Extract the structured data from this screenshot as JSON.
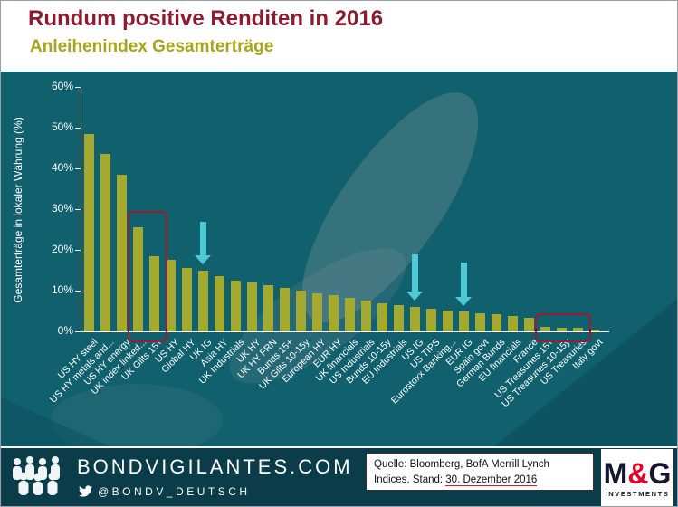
{
  "header": {
    "title": "Rundum positive Renditen in 2016",
    "subtitle": "Anleihenindex Gesamterträge"
  },
  "chart_data": {
    "type": "bar",
    "title": "Anleihenindex Gesamterträge",
    "xlabel": "",
    "ylabel": "Gesamterträge in lokaler Währung (%)",
    "ylim": [
      0,
      60
    ],
    "yticks": [
      "0%",
      "10%",
      "20%",
      "30%",
      "40%",
      "50%",
      "60%"
    ],
    "grid": false,
    "legend": "none",
    "bar_color": "#a4a930",
    "background_color": "#11606e",
    "categories": [
      "US HY steel",
      "US HY metals and...",
      "US HY energy",
      "UK index linked...",
      "UK Gilts 15+",
      "US HY",
      "Global HY",
      "UK IG",
      "Asia HY",
      "UK Industrials",
      "UK HY",
      "UK HY FRN",
      "Bunds 15+",
      "UK Gilts 10-15y",
      "European HY",
      "EUR HY",
      "UK financials",
      "US Industrials",
      "Bunds 10-15y",
      "EU Industrials",
      "US IG",
      "US TIPS",
      "Eurostoxx Banking...",
      "EUR IG",
      "Spain govt",
      "German Bunds",
      "EU financials",
      "France",
      "US Treasuries 15+",
      "US Treasuries 10-15y",
      "US Treasuries",
      "Italy govt"
    ],
    "values": [
      48.5,
      43.5,
      38.5,
      25.5,
      18.5,
      17.5,
      15.5,
      15,
      13.5,
      12.5,
      12,
      11.3,
      10.6,
      10,
      9.4,
      8.8,
      8.2,
      7.6,
      7,
      6.5,
      6,
      5.6,
      5.2,
      4.9,
      4.5,
      4.2,
      3.8,
      3.3,
      1.2,
      1,
      0.9,
      0.5
    ],
    "annotations": {
      "arrow_color": "#4ec9d6",
      "box_color": "#9c1b2c",
      "arrows": [
        {
          "category": "UK IG",
          "bar_index": 7,
          "from_pct": 27,
          "to_pct": 16.5
        },
        {
          "category": "US IG",
          "bar_index": 20,
          "from_pct": 19,
          "to_pct": 7.5
        },
        {
          "category": "EUR IG",
          "bar_index": 23,
          "from_pct": 17,
          "to_pct": 6.3
        }
      ],
      "highlight_boxes": [
        {
          "from_index": 3,
          "to_index": 4,
          "top_pct": 29.5
        },
        {
          "from_index": 28,
          "to_index": 30,
          "top_pct": 4.5
        }
      ]
    }
  },
  "footer": {
    "site": "BONDVIGILANTES.COM",
    "twitter_handle": "@BONDV_DEUTSCH",
    "source_line1": "Quelle: Bloomberg, BofA Merrill Lynch",
    "source_line2_prefix": "Indices, Stand: ",
    "source_date": "30. Dezember 2016",
    "logo_m": "M",
    "logo_amp": "&",
    "logo_g": "G",
    "logo_sub": "INVESTMENTS"
  }
}
